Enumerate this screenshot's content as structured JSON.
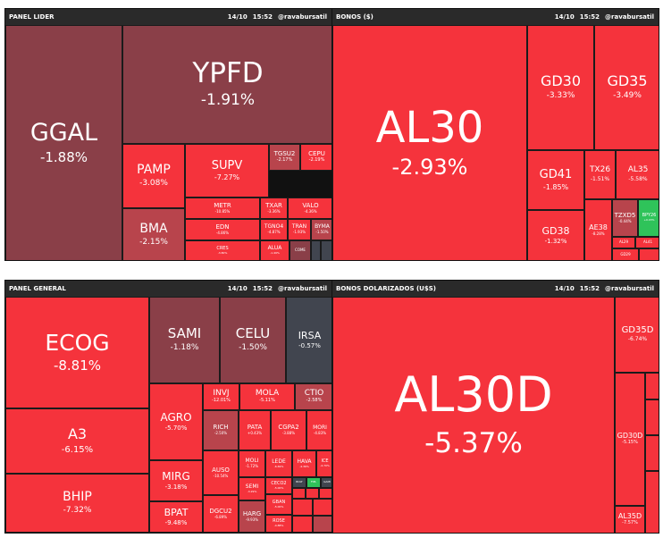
{
  "colors": {
    "red": "#f5333c",
    "dark_red": "#8a3f48",
    "mid_red": "#b8444c",
    "slate": "#41454f",
    "green": "#2fc35a",
    "header_bg": "#2a2a2a"
  },
  "panels": [
    {
      "title": "PANEL LIDER",
      "date": "14/10",
      "time": "15:52",
      "handle": "@ravabursatil",
      "tiles": [
        {
          "t": "GGAL",
          "p": "-1.88%"
        },
        {
          "t": "YPFD",
          "p": "-1.91%"
        },
        {
          "t": "PAMP",
          "p": "-3.08%"
        },
        {
          "t": "SUPV",
          "p": "-7.27%"
        },
        {
          "t": "TGSU2",
          "p": "-2.17%"
        },
        {
          "t": "CEPU",
          "p": "-2.19%"
        },
        {
          "t": "BMA",
          "p": "-2.15%"
        },
        {
          "t": "METR",
          "p": "-10.85%"
        },
        {
          "t": "TXAR",
          "p": "-3.36%"
        },
        {
          "t": "VALO",
          "p": "-4.36%"
        },
        {
          "t": "EDN",
          "p": "-4.86%"
        },
        {
          "t": "TGNO4",
          "p": "-4.87%"
        },
        {
          "t": "TRAN",
          "p": "-1.93%"
        },
        {
          "t": "BYMA",
          "p": "-1.50%"
        },
        {
          "t": "CRES",
          "p": "-3.80%"
        },
        {
          "t": "ALUA",
          "p": "-1.49%"
        },
        {
          "t": "COME",
          "p": ""
        },
        {
          "t": "",
          "p": ""
        },
        {
          "t": "",
          "p": ""
        }
      ]
    },
    {
      "title": "BONOS ($)",
      "date": "14/10",
      "time": "15:52",
      "handle": "@ravabursatil",
      "tiles": [
        {
          "t": "AL30",
          "p": "-2.93%"
        },
        {
          "t": "GD30",
          "p": "-3.33%"
        },
        {
          "t": "GD35",
          "p": "-3.49%"
        },
        {
          "t": "GD41",
          "p": "-1.85%"
        },
        {
          "t": "TX26",
          "p": "-1.51%"
        },
        {
          "t": "AL35",
          "p": "-5.58%"
        },
        {
          "t": "GD38",
          "p": "-1.32%"
        },
        {
          "t": "AE38",
          "p": "-8.28%"
        },
        {
          "t": "TZXD5",
          "p": "-0.44%"
        },
        {
          "t": "BPY26",
          "p": "+0.03%"
        },
        {
          "t": "AL29",
          "p": ""
        },
        {
          "t": "AL41",
          "p": ""
        },
        {
          "t": "GD29",
          "p": ""
        },
        {
          "t": "",
          "p": ""
        }
      ]
    },
    {
      "title": "PANEL GENERAL",
      "date": "14/10",
      "time": "15:52",
      "handle": "@ravabursatil",
      "tiles": [
        {
          "t": "ECOG",
          "p": "-8.81%"
        },
        {
          "t": "SAMI",
          "p": "-1.18%"
        },
        {
          "t": "CELU",
          "p": "-1.50%"
        },
        {
          "t": "IRSA",
          "p": "-0.57%"
        },
        {
          "t": "INVJ",
          "p": "-12.01%"
        },
        {
          "t": "MOLA",
          "p": "-5.11%"
        },
        {
          "t": "CTIO",
          "p": "-2.58%"
        },
        {
          "t": "A3",
          "p": "-6.15%"
        },
        {
          "t": "AGRO",
          "p": "-5.70%"
        },
        {
          "t": "RICH",
          "p": "-2.50%"
        },
        {
          "t": "PATA",
          "p": "+0.43%"
        },
        {
          "t": "CGPA2",
          "p": "-3.88%"
        },
        {
          "t": "MORI",
          "p": "-4.83%"
        },
        {
          "t": "MIRG",
          "p": "-3.18%"
        },
        {
          "t": "AUSO",
          "p": "-10.54%"
        },
        {
          "t": "MOLI",
          "p": "-1.72%"
        },
        {
          "t": "LEDE",
          "p": "-6.69%"
        },
        {
          "t": "HAVA",
          "p": "-4.36%"
        },
        {
          "t": "ICE",
          "p": "-4.70%"
        },
        {
          "t": "BHIP",
          "p": "-7.32%"
        },
        {
          "t": "SEMI",
          "p": "-3.29%"
        },
        {
          "t": "CECO2",
          "p": "-5.00%"
        },
        {
          "t": "BPAT",
          "p": "-9.48%"
        },
        {
          "t": "DGCU2",
          "p": "-6.89%"
        },
        {
          "t": "GBAN",
          "p": "-5.00%"
        },
        {
          "t": "HARG",
          "p": "-9.93%"
        },
        {
          "t": "ROSE",
          "p": "-4.88%"
        },
        {
          "t": "BOLT",
          "p": ""
        },
        {
          "t": "FIPL",
          "p": ""
        },
        {
          "t": "GAMI",
          "p": ""
        },
        {
          "t": "",
          "p": ""
        },
        {
          "t": "",
          "p": ""
        },
        {
          "t": "",
          "p": ""
        },
        {
          "t": "",
          "p": ""
        },
        {
          "t": "",
          "p": ""
        },
        {
          "t": "",
          "p": ""
        },
        {
          "t": "",
          "p": ""
        }
      ]
    },
    {
      "title": "BONOS DOLARIZADOS (U$S)",
      "date": "14/10",
      "time": "15:52",
      "handle": "@ravabursatil",
      "tiles": [
        {
          "t": "AL30D",
          "p": "-5.37%"
        },
        {
          "t": "GD35D",
          "p": "-6.74%"
        },
        {
          "t": "GD30D",
          "p": "-5.15%"
        },
        {
          "t": "AL35D",
          "p": "-7.57%"
        },
        {
          "t": "",
          "p": ""
        },
        {
          "t": "",
          "p": ""
        },
        {
          "t": "",
          "p": ""
        },
        {
          "t": "",
          "p": ""
        }
      ]
    }
  ]
}
